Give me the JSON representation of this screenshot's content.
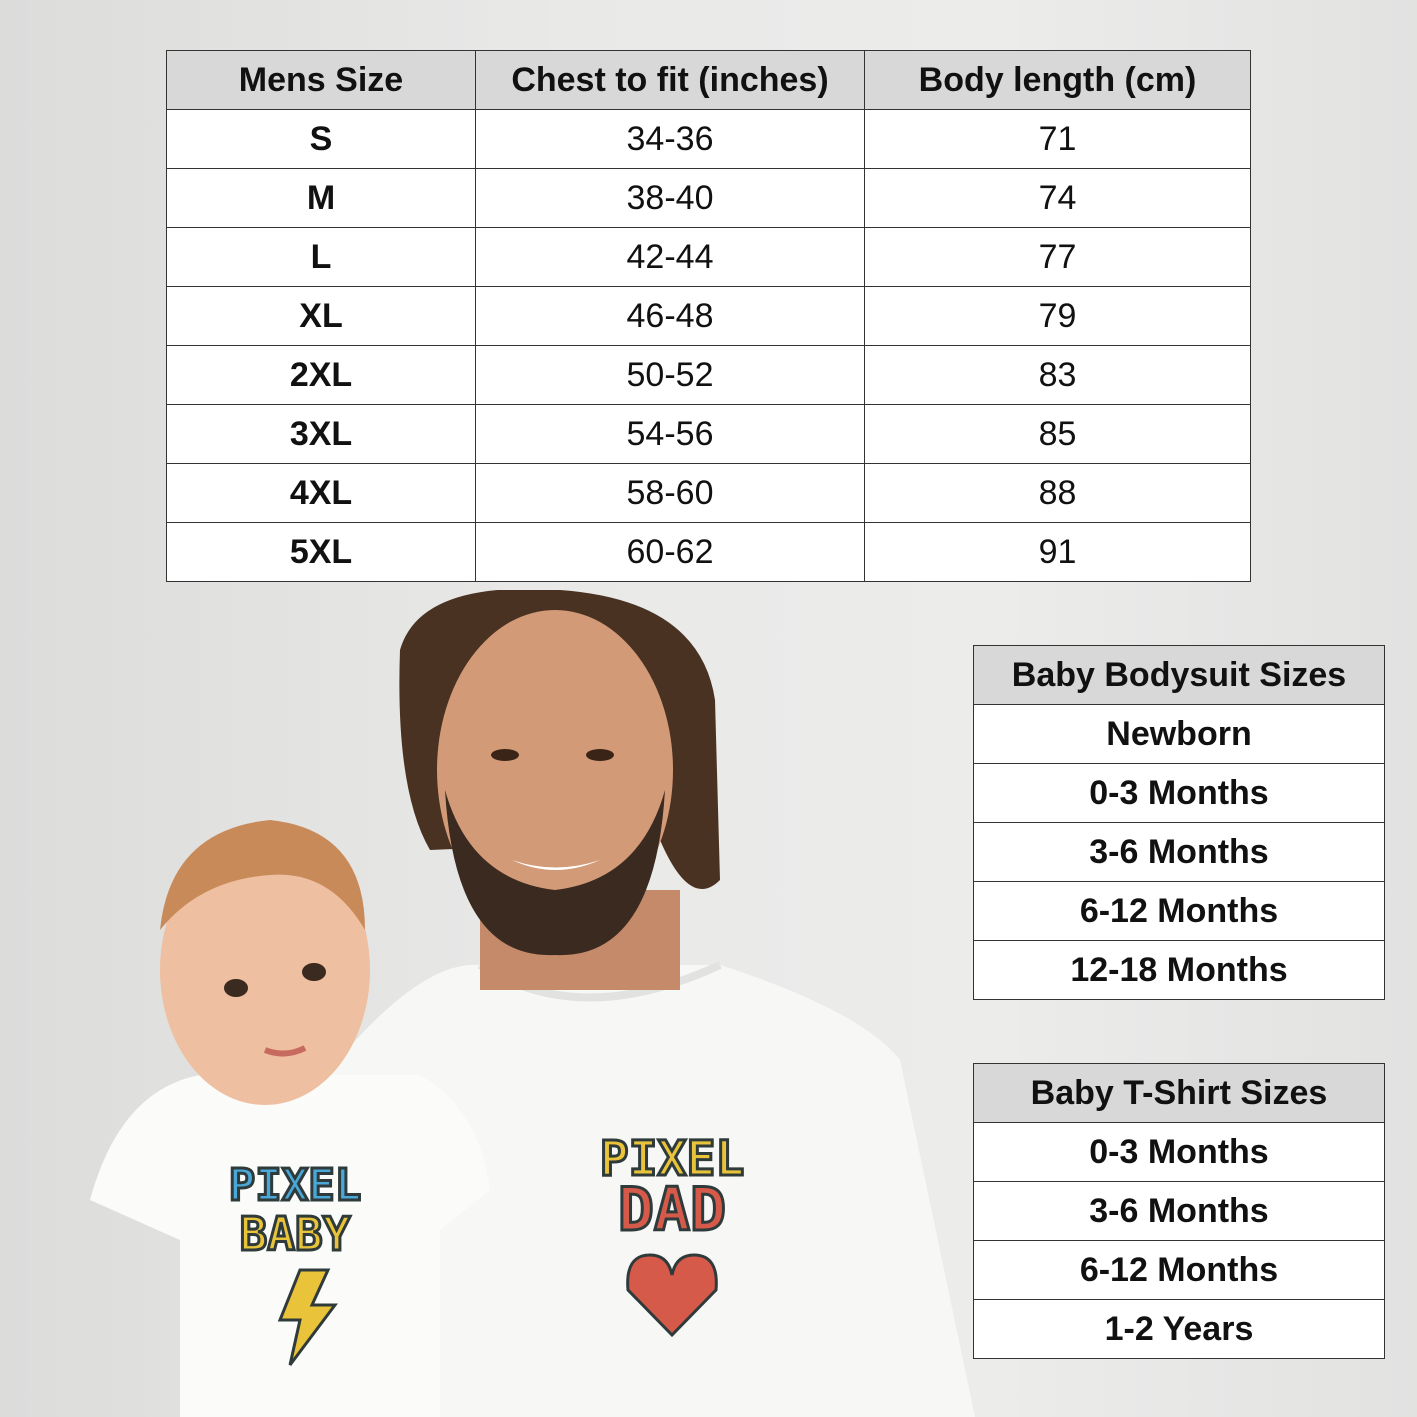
{
  "mens_table": {
    "headers": [
      "Mens Size",
      "Chest to fit (inches)",
      "Body length (cm)"
    ],
    "rows": [
      [
        "S",
        "34-36",
        "71"
      ],
      [
        "M",
        "38-40",
        "74"
      ],
      [
        "L",
        "42-44",
        "77"
      ],
      [
        "XL",
        "46-48",
        "79"
      ],
      [
        "2XL",
        "50-52",
        "83"
      ],
      [
        "3XL",
        "54-56",
        "85"
      ],
      [
        "4XL",
        "58-60",
        "88"
      ],
      [
        "5XL",
        "60-62",
        "91"
      ]
    ]
  },
  "baby_bodysuit_table": {
    "header": "Baby Bodysuit Sizes",
    "rows": [
      "Newborn",
      "0-3 Months",
      "3-6 Months",
      "6-12 Months",
      "12-18 Months"
    ]
  },
  "baby_tshirt_table": {
    "header": "Baby T-Shirt Sizes",
    "rows": [
      "0-3 Months",
      "3-6 Months",
      "6-12 Months",
      "1-2 Years"
    ]
  },
  "photo": {
    "dad_print": [
      "PIXEL",
      "DAD"
    ],
    "baby_print": [
      "PIXEL",
      "BABY"
    ],
    "colors": {
      "yellow": "#e9c43a",
      "red": "#d65a4a",
      "blue": "#4aa8d8",
      "outline": "#2f3a3a"
    }
  }
}
